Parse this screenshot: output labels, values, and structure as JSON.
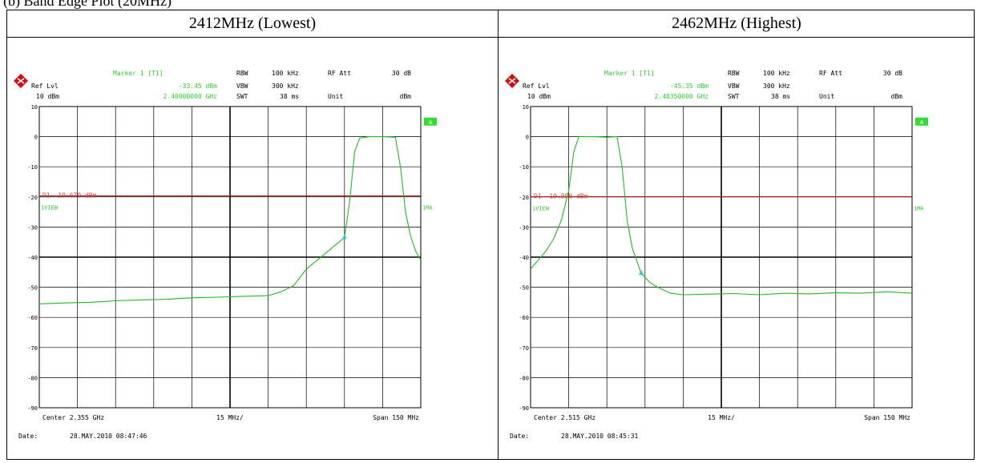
{
  "caption": "(b) Band Edge Plot (20MHz)",
  "table": {
    "left_header": "2412MHz (Lowest)",
    "right_header": "2462MHz (Highest)"
  },
  "colors": {
    "trace": "#22bb22",
    "display_line": "#a02020",
    "marker_text": "#33cc33",
    "marker": "#22cccc",
    "grid": "#000000"
  },
  "chart_data": [
    {
      "type": "line",
      "header": "2412MHz (Lowest)",
      "ref_lvl_label": "Ref Lvl",
      "ref_lvl_value": "10 dBm",
      "marker_label": "Marker 1 [T1]",
      "marker_level": "-33.45 dBm",
      "marker_freq": "2.40000000 GHz",
      "rbw_label": "RBW",
      "rbw_value": "100 kHz",
      "vbw_label": "VBW",
      "vbw_value": "300 kHz",
      "swt_label": "SWT",
      "swt_value": "38 ms",
      "rfatt_label": "RF Att",
      "rfatt_value": "30 dB",
      "unit_label": "Unit",
      "unit_value": "dBm",
      "a_badge": "A",
      "view_label": "1VIEW",
      "trace_label": "1MA",
      "display_line_label": "D1 -19.679 dBm",
      "display_line_level": -19.679,
      "center_label": "Center 2.355 GHz",
      "div_label": "15 MHz/",
      "span_label": "Span 150 MHz",
      "date_label": "Date:",
      "date_value": "28.MAY.2010  08:47:46",
      "xlim": [
        2.28,
        2.43
      ],
      "ylim": [
        -90,
        10
      ],
      "yticks": [
        10,
        0,
        -10,
        -20,
        -30,
        -40,
        -50,
        -60,
        -70,
        -80,
        -90
      ],
      "marker_point": [
        2.4,
        -33.45
      ],
      "x": [
        2.28,
        2.29,
        2.3,
        2.31,
        2.32,
        2.33,
        2.34,
        2.35,
        2.36,
        2.37,
        2.375,
        2.38,
        2.385,
        2.39,
        2.395,
        2.4,
        2.402,
        2.404,
        2.406,
        2.41,
        2.415,
        2.42,
        2.422,
        2.424,
        2.426,
        2.428,
        2.43
      ],
      "y": [
        -55.5,
        -55.2,
        -55.0,
        -54.5,
        -54.2,
        -54.0,
        -53.5,
        -53.3,
        -53.0,
        -52.8,
        -51.5,
        -49.5,
        -44.0,
        -40.5,
        -37.0,
        -33.45,
        -22.0,
        -5.0,
        -0.5,
        0.0,
        0.0,
        -0.2,
        -10.0,
        -25.0,
        -33.0,
        -38.0,
        -41.0
      ]
    },
    {
      "type": "line",
      "header": "2462MHz (Highest)",
      "ref_lvl_label": "Ref Lvl",
      "ref_lvl_value": "10 dBm",
      "marker_label": "Marker 1 [T1]",
      "marker_level": "-45.35 dBm",
      "marker_freq": "2.48350000 GHz",
      "rbw_label": "RBW",
      "rbw_value": "100 kHz",
      "vbw_label": "VBW",
      "vbw_value": "300 kHz",
      "swt_label": "SWT",
      "swt_value": "38 ms",
      "rfatt_label": "RF Att",
      "rfatt_value": "30 dB",
      "unit_label": "Unit",
      "unit_value": "dBm",
      "a_badge": "A",
      "view_label": "1VIEW",
      "trace_label": "1MA",
      "display_line_label": "D1 -19.950 dBm",
      "display_line_level": -19.95,
      "center_label": "Center 2.515 GHz",
      "div_label": "15 MHz/",
      "span_label": "Span 150 MHz",
      "date_label": "Date:",
      "date_value": "28.MAY.2010  08:45:31",
      "xlim": [
        2.44,
        2.59
      ],
      "ylim": [
        -90,
        10
      ],
      "yticks": [
        10,
        0,
        -10,
        -20,
        -30,
        -40,
        -50,
        -60,
        -70,
        -80,
        -90
      ],
      "marker_point": [
        2.4835,
        -45.35
      ],
      "x": [
        2.44,
        2.443,
        2.446,
        2.449,
        2.452,
        2.455,
        2.457,
        2.459,
        2.461,
        2.465,
        2.47,
        2.474,
        2.476,
        2.478,
        2.48,
        2.4835,
        2.487,
        2.49,
        2.495,
        2.5,
        2.51,
        2.52,
        2.53,
        2.54,
        2.55,
        2.56,
        2.57,
        2.58,
        2.59
      ],
      "y": [
        -44.0,
        -41.0,
        -38.0,
        -34.0,
        -28.0,
        -18.0,
        -5.0,
        0.0,
        0.0,
        0.0,
        -0.2,
        0.0,
        -10.0,
        -28.0,
        -37.0,
        -45.35,
        -48.5,
        -50.0,
        -52.0,
        -52.5,
        -52.3,
        -52.1,
        -52.5,
        -52.0,
        -52.2,
        -51.8,
        -52.0,
        -51.5,
        -52.0
      ]
    }
  ]
}
